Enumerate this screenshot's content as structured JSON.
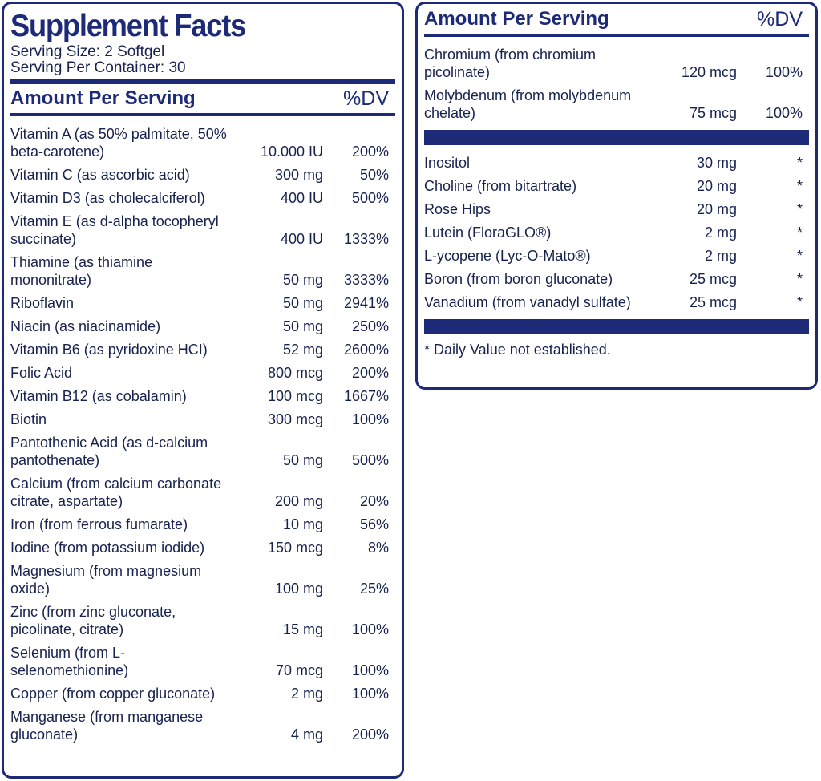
{
  "title": "Supplement Facts",
  "serving_size": "Serving Size: 2 Softgel",
  "servings_per_container": "Serving Per Container: 30",
  "header": {
    "amount": "Amount Per Serving",
    "dv": "%DV"
  },
  "left_rows": [
    {
      "name": "Vitamin A (as 50% palmitate, 50% beta-carotene)",
      "amount": "10.000 IU",
      "dv": "200%"
    },
    {
      "name": "Vitamin C (as ascorbic acid)",
      "amount": "300 mg",
      "dv": "50%"
    },
    {
      "name": "Vitamin D3 (as cholecalciferol)",
      "amount": "400 IU",
      "dv": "500%"
    },
    {
      "name": "Vitamin E (as d-alpha tocopheryl succinate)",
      "amount": "400 IU",
      "dv": "1333%"
    },
    {
      "name": "Thiamine (as thiamine mononitrate)",
      "amount": "50 mg",
      "dv": "3333%"
    },
    {
      "name": "Riboflavin",
      "amount": "50 mg",
      "dv": "2941%"
    },
    {
      "name": "Niacin (as niacinamide)",
      "amount": "50 mg",
      "dv": "250%"
    },
    {
      "name": "Vitamin B6 (as pyridoxine HCI)",
      "amount": "52 mg",
      "dv": "2600%"
    },
    {
      "name": "Folic Acid",
      "amount": "800 mcg",
      "dv": "200%"
    },
    {
      "name": "Vitamin B12 (as cobalamin)",
      "amount": "100 mcg",
      "dv": "1667%"
    },
    {
      "name": "Biotin",
      "amount": "300 mcg",
      "dv": "100%"
    },
    {
      "name": "Pantothenic Acid (as d-calcium pantothenate)",
      "amount": "50 mg",
      "dv": "500%"
    },
    {
      "name": "Calcium (from calcium carbonate citrate, aspartate)",
      "amount": "200 mg",
      "dv": "20%"
    },
    {
      "name": "Iron (from ferrous fumarate)",
      "amount": "10 mg",
      "dv": "56%"
    },
    {
      "name": "Iodine (from potassium iodide)",
      "amount": "150 mcg",
      "dv": "8%"
    },
    {
      "name": "Magnesium (from magnesium oxide)",
      "amount": "100 mg",
      "dv": "25%"
    },
    {
      "name": "Zinc (from zinc gluconate, picolinate, citrate)",
      "amount": "15 mg",
      "dv": "100%"
    },
    {
      "name": "Selenium (from L-selenomethionine)",
      "amount": "70 mcg",
      "dv": "100%"
    },
    {
      "name": "Copper (from copper gluconate)",
      "amount": "2 mg",
      "dv": "100%"
    },
    {
      "name": "Manganese (from manganese gluconate)",
      "amount": "4 mg",
      "dv": "200%"
    }
  ],
  "right_rows_top": [
    {
      "name": "Chromium (from chromium picolinate)",
      "amount": "120 mcg",
      "dv": "100%"
    },
    {
      "name": "Molybdenum (from molybdenum chelate)",
      "amount": "75 mcg",
      "dv": "100%"
    }
  ],
  "right_rows_bottom": [
    {
      "name": "Inositol",
      "amount": "30 mg",
      "dv": "*"
    },
    {
      "name": "Choline (from bitartrate)",
      "amount": "20 mg",
      "dv": "*"
    },
    {
      "name": "Rose Hips",
      "amount": "20 mg",
      "dv": "*"
    },
    {
      "name": "Lutein (FloraGLO®)",
      "amount": "2 mg",
      "dv": "*"
    },
    {
      "name": "L-ycopene (Lyc-O-Mato®)",
      "amount": "2 mg",
      "dv": "*"
    },
    {
      "name": "Boron (from boron gluconate)",
      "amount": "25 mcg",
      "dv": "*"
    },
    {
      "name": "Vanadium (from vanadyl sulfate)",
      "amount": "25 mcg",
      "dv": "*"
    }
  ],
  "footnote": "* Daily Value not established.",
  "colors": {
    "brand_navy": "#1c2a78",
    "text": "#17224f"
  }
}
